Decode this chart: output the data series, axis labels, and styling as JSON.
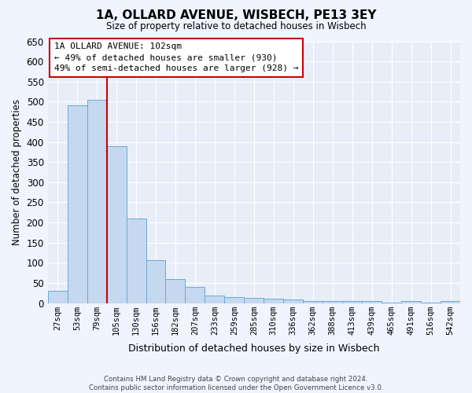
{
  "title": "1A, OLLARD AVENUE, WISBECH, PE13 3EY",
  "subtitle": "Size of property relative to detached houses in Wisbech",
  "xlabel": "Distribution of detached houses by size in Wisbech",
  "ylabel": "Number of detached properties",
  "categories": [
    "27sqm",
    "53sqm",
    "79sqm",
    "105sqm",
    "130sqm",
    "156sqm",
    "182sqm",
    "207sqm",
    "233sqm",
    "259sqm",
    "285sqm",
    "310sqm",
    "336sqm",
    "362sqm",
    "388sqm",
    "413sqm",
    "439sqm",
    "465sqm",
    "491sqm",
    "516sqm",
    "542sqm"
  ],
  "values": [
    30,
    490,
    505,
    390,
    210,
    107,
    59,
    40,
    18,
    15,
    12,
    11,
    9,
    5,
    5,
    5,
    5,
    2,
    5,
    2,
    5
  ],
  "bar_color": "#c5d8f0",
  "bar_edge_color": "#6aaad4",
  "annotation_text_line1": "1A OLLARD AVENUE: 102sqm",
  "annotation_text_line2": "← 49% of detached houses are smaller (930)",
  "annotation_text_line3": "49% of semi-detached houses are larger (928) →",
  "annotation_box_facecolor": "#ffffff",
  "annotation_box_edgecolor": "#cc0000",
  "vline_color": "#cc0000",
  "vline_x_index": 2.5,
  "ylim": [
    0,
    650
  ],
  "yticks": [
    0,
    50,
    100,
    150,
    200,
    250,
    300,
    350,
    400,
    450,
    500,
    550,
    600,
    650
  ],
  "plot_bg_color": "#e8eef8",
  "fig_bg_color": "#f0f4ff",
  "grid_color": "#ffffff",
  "footer_line1": "Contains HM Land Registry data © Crown copyright and database right 2024.",
  "footer_line2": "Contains public sector information licensed under the Open Government Licence v3.0."
}
